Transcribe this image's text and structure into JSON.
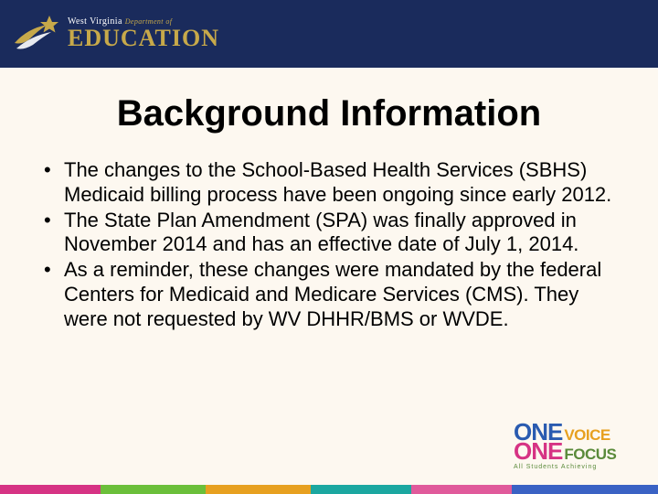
{
  "header": {
    "logo_line1_state": "West Virginia",
    "logo_line1_dept": "Department of",
    "logo_education": "EDUCATION"
  },
  "slide": {
    "title": "Background Information",
    "bullets": [
      "The changes to the School-Based Health Services (SBHS) Medicaid billing process have been ongoing since early 2012.",
      "The State Plan Amendment (SPA) was finally approved in November 2014 and has an effective date of July 1, 2014.",
      "As a reminder, these changes were mandated by the federal Centers for Medicaid and Medicare Services (CMS).  They were not requested  by WV DHHR/BMS or WVDE."
    ]
  },
  "footer": {
    "stripe_colors": [
      "#d63384",
      "#6bbf3a",
      "#e7a020",
      "#1ba7a0",
      "#e05a9b",
      "#3a62c4"
    ],
    "stripe_widths": [
      110,
      115,
      115,
      110,
      110,
      160
    ],
    "one_logo": {
      "one1": "ONE",
      "voice": "VOICE",
      "one2": "ONE",
      "focus": "FOCUS",
      "tagline": "All Students Achieving"
    }
  },
  "styling": {
    "header_bg": "#1a2b5c",
    "body_bg": "#fdf8f0",
    "logo_gold": "#c7a94a",
    "title_fontsize": 40,
    "bullet_fontsize": 22,
    "text_color": "#000000"
  }
}
